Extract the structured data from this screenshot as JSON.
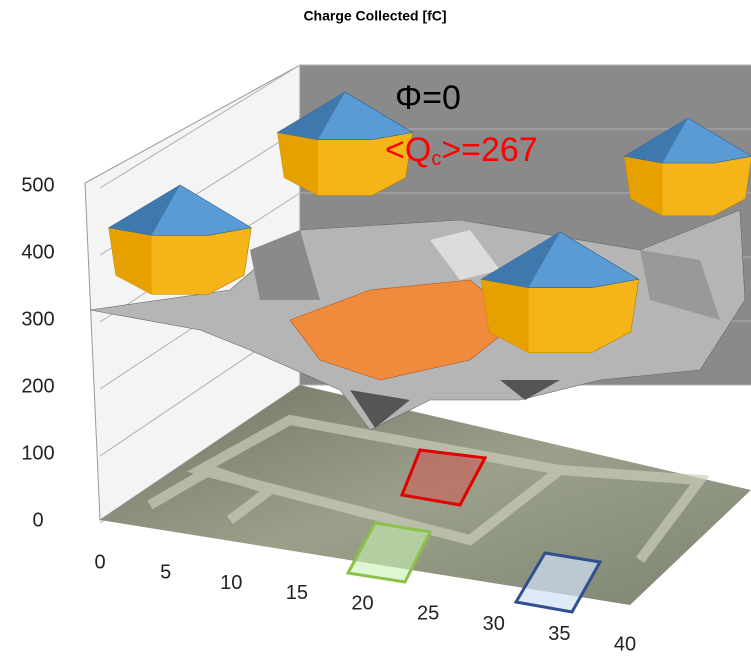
{
  "chart_data": {
    "type": "surface3d",
    "title": "Charge Collected [fC]",
    "annotations": [
      {
        "text": "Φ=0",
        "color": "#000000"
      },
      {
        "parts": [
          "<Q",
          "c",
          ">=267"
        ],
        "color": "#ff0000"
      }
    ],
    "zlim": [
      0,
      500
    ],
    "zticks": [
      0,
      100,
      200,
      300,
      400,
      500
    ],
    "xlim": [
      0,
      40
    ],
    "xticks": [
      0,
      5,
      10,
      15,
      20,
      25,
      30,
      35,
      40
    ],
    "grid": true
  }
}
